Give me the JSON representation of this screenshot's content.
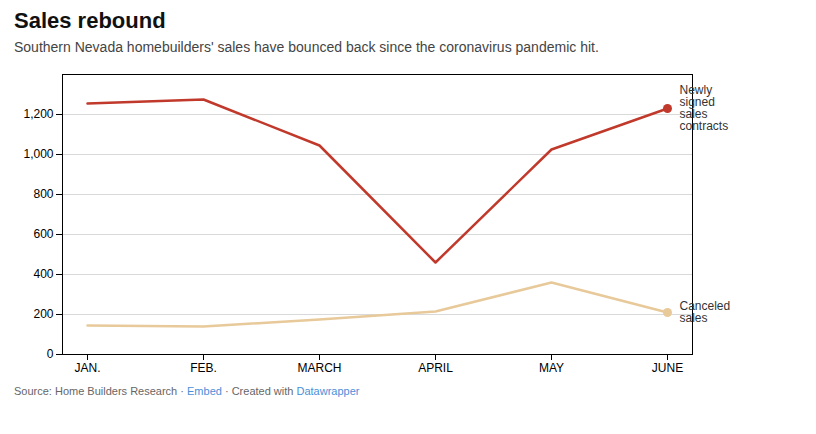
{
  "chart_data": {
    "type": "line",
    "title": "Sales rebound",
    "subtitle": "Southern Nevada homebuilders' sales have bounced back since the coronavirus pandemic hit.",
    "categories": [
      "JAN.",
      "FEB.",
      "MARCH",
      "APRIL",
      "MAY",
      "JUNE"
    ],
    "series": [
      {
        "name": "Newly\nsigned\nsales\ncontracts",
        "color": "#c0392b",
        "values": [
          1255,
          1275,
          1045,
          460,
          1025,
          1230
        ]
      },
      {
        "name": "Canceled\nsales",
        "color": "#e8c99a",
        "values": [
          145,
          140,
          175,
          215,
          360,
          210
        ]
      }
    ],
    "ylim": [
      0,
      1400
    ],
    "yticks": [
      0,
      200,
      400,
      600,
      800,
      {
        "value": 1000,
        "label": "1,000"
      },
      {
        "value": 1200,
        "label": "1,200"
      }
    ],
    "grid": true,
    "source": [
      {
        "text": "Source: Home Builders Research · ",
        "color": "#666666"
      },
      {
        "text": "Embed",
        "color": "#4a90d9"
      },
      {
        "text": " · Created with ",
        "color": "#666666"
      },
      {
        "text": "Datawrapper",
        "color": "#4a90d9"
      }
    ]
  }
}
